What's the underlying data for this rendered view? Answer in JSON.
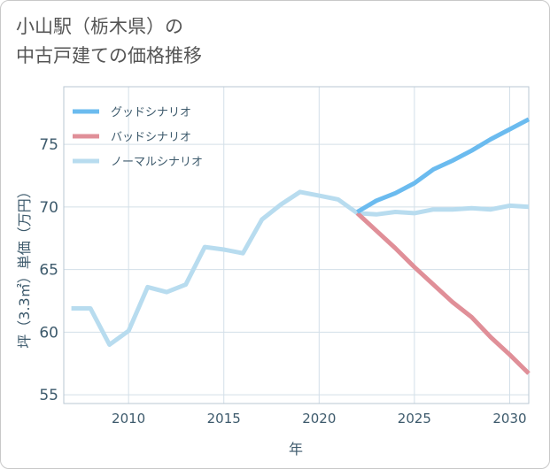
{
  "title_line1": "小山駅（栃木県）の",
  "title_line2": "中古戸建ての価格推移",
  "chart_data": {
    "type": "line",
    "xlabel": "年",
    "ylabel": "坪（3.3㎡）単価（万円）",
    "xlim": [
      2006.6,
      2031.0
    ],
    "ylim": [
      54.3,
      79.6
    ],
    "xticks": [
      2010,
      2015,
      2020,
      2025,
      2030
    ],
    "yticks": [
      55,
      60,
      65,
      70,
      75
    ],
    "grid": true,
    "legend_position": "top-left",
    "series": [
      {
        "name": "グッドシナリオ",
        "color": "#6bbbef",
        "points": [
          [
            2022,
            69.6
          ],
          [
            2023,
            70.5
          ],
          [
            2024,
            71.1
          ],
          [
            2025,
            71.9
          ],
          [
            2026,
            73.0
          ],
          [
            2027,
            73.7
          ],
          [
            2028,
            74.5
          ],
          [
            2029,
            75.4
          ],
          [
            2030,
            76.2
          ],
          [
            2031,
            77.0
          ]
        ]
      },
      {
        "name": "バッドシナリオ",
        "color": "#e08f98",
        "points": [
          [
            2022,
            69.5
          ],
          [
            2023,
            68.1
          ],
          [
            2024,
            66.7
          ],
          [
            2025,
            65.2
          ],
          [
            2026,
            63.8
          ],
          [
            2027,
            62.4
          ],
          [
            2028,
            61.2
          ],
          [
            2029,
            59.6
          ],
          [
            2030,
            58.2
          ],
          [
            2031,
            56.7
          ]
        ]
      },
      {
        "name": "ノーマルシナリオ",
        "color": "#b8dcef",
        "points": [
          [
            2007,
            61.9
          ],
          [
            2008,
            61.9
          ],
          [
            2009,
            59.0
          ],
          [
            2010,
            60.1
          ],
          [
            2011,
            63.6
          ],
          [
            2012,
            63.2
          ],
          [
            2013,
            63.8
          ],
          [
            2014,
            66.8
          ],
          [
            2015,
            66.6
          ],
          [
            2016,
            66.3
          ],
          [
            2017,
            69.0
          ],
          [
            2018,
            70.2
          ],
          [
            2019,
            71.2
          ],
          [
            2020,
            70.9
          ],
          [
            2021,
            70.6
          ],
          [
            2022,
            69.5
          ],
          [
            2023,
            69.4
          ],
          [
            2024,
            69.6
          ],
          [
            2025,
            69.5
          ],
          [
            2026,
            69.8
          ],
          [
            2027,
            69.8
          ],
          [
            2028,
            69.9
          ],
          [
            2029,
            69.8
          ],
          [
            2030,
            70.1
          ],
          [
            2031,
            70.0
          ]
        ]
      }
    ]
  }
}
